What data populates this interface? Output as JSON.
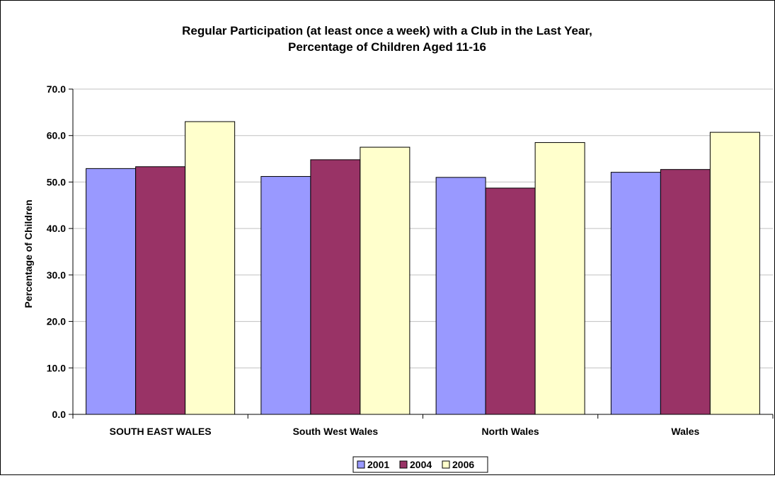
{
  "chart_data": {
    "type": "bar",
    "title": "Regular Participation (at least once a week) with a Club in the Last Year,",
    "subtitle": "Percentage of Children Aged 11-16",
    "xlabel": "",
    "ylabel": "Percentage of Children",
    "categories": [
      "SOUTH EAST WALES",
      "South West Wales",
      "North Wales",
      "Wales"
    ],
    "series": [
      {
        "name": "2001",
        "color": "#9999ff",
        "values": [
          52.9,
          51.2,
          51.0,
          52.1
        ]
      },
      {
        "name": "2004",
        "color": "#993366",
        "values": [
          53.3,
          54.8,
          48.7,
          52.7
        ]
      },
      {
        "name": "2006",
        "color": "#ffffcc",
        "values": [
          63.0,
          57.5,
          58.5,
          60.7
        ]
      }
    ],
    "ylim": [
      0,
      70
    ],
    "yticks": [
      "0.0",
      "10.0",
      "20.0",
      "30.0",
      "40.0",
      "50.0",
      "60.0",
      "70.0"
    ],
    "grid": true,
    "legend_position": "bottom"
  }
}
